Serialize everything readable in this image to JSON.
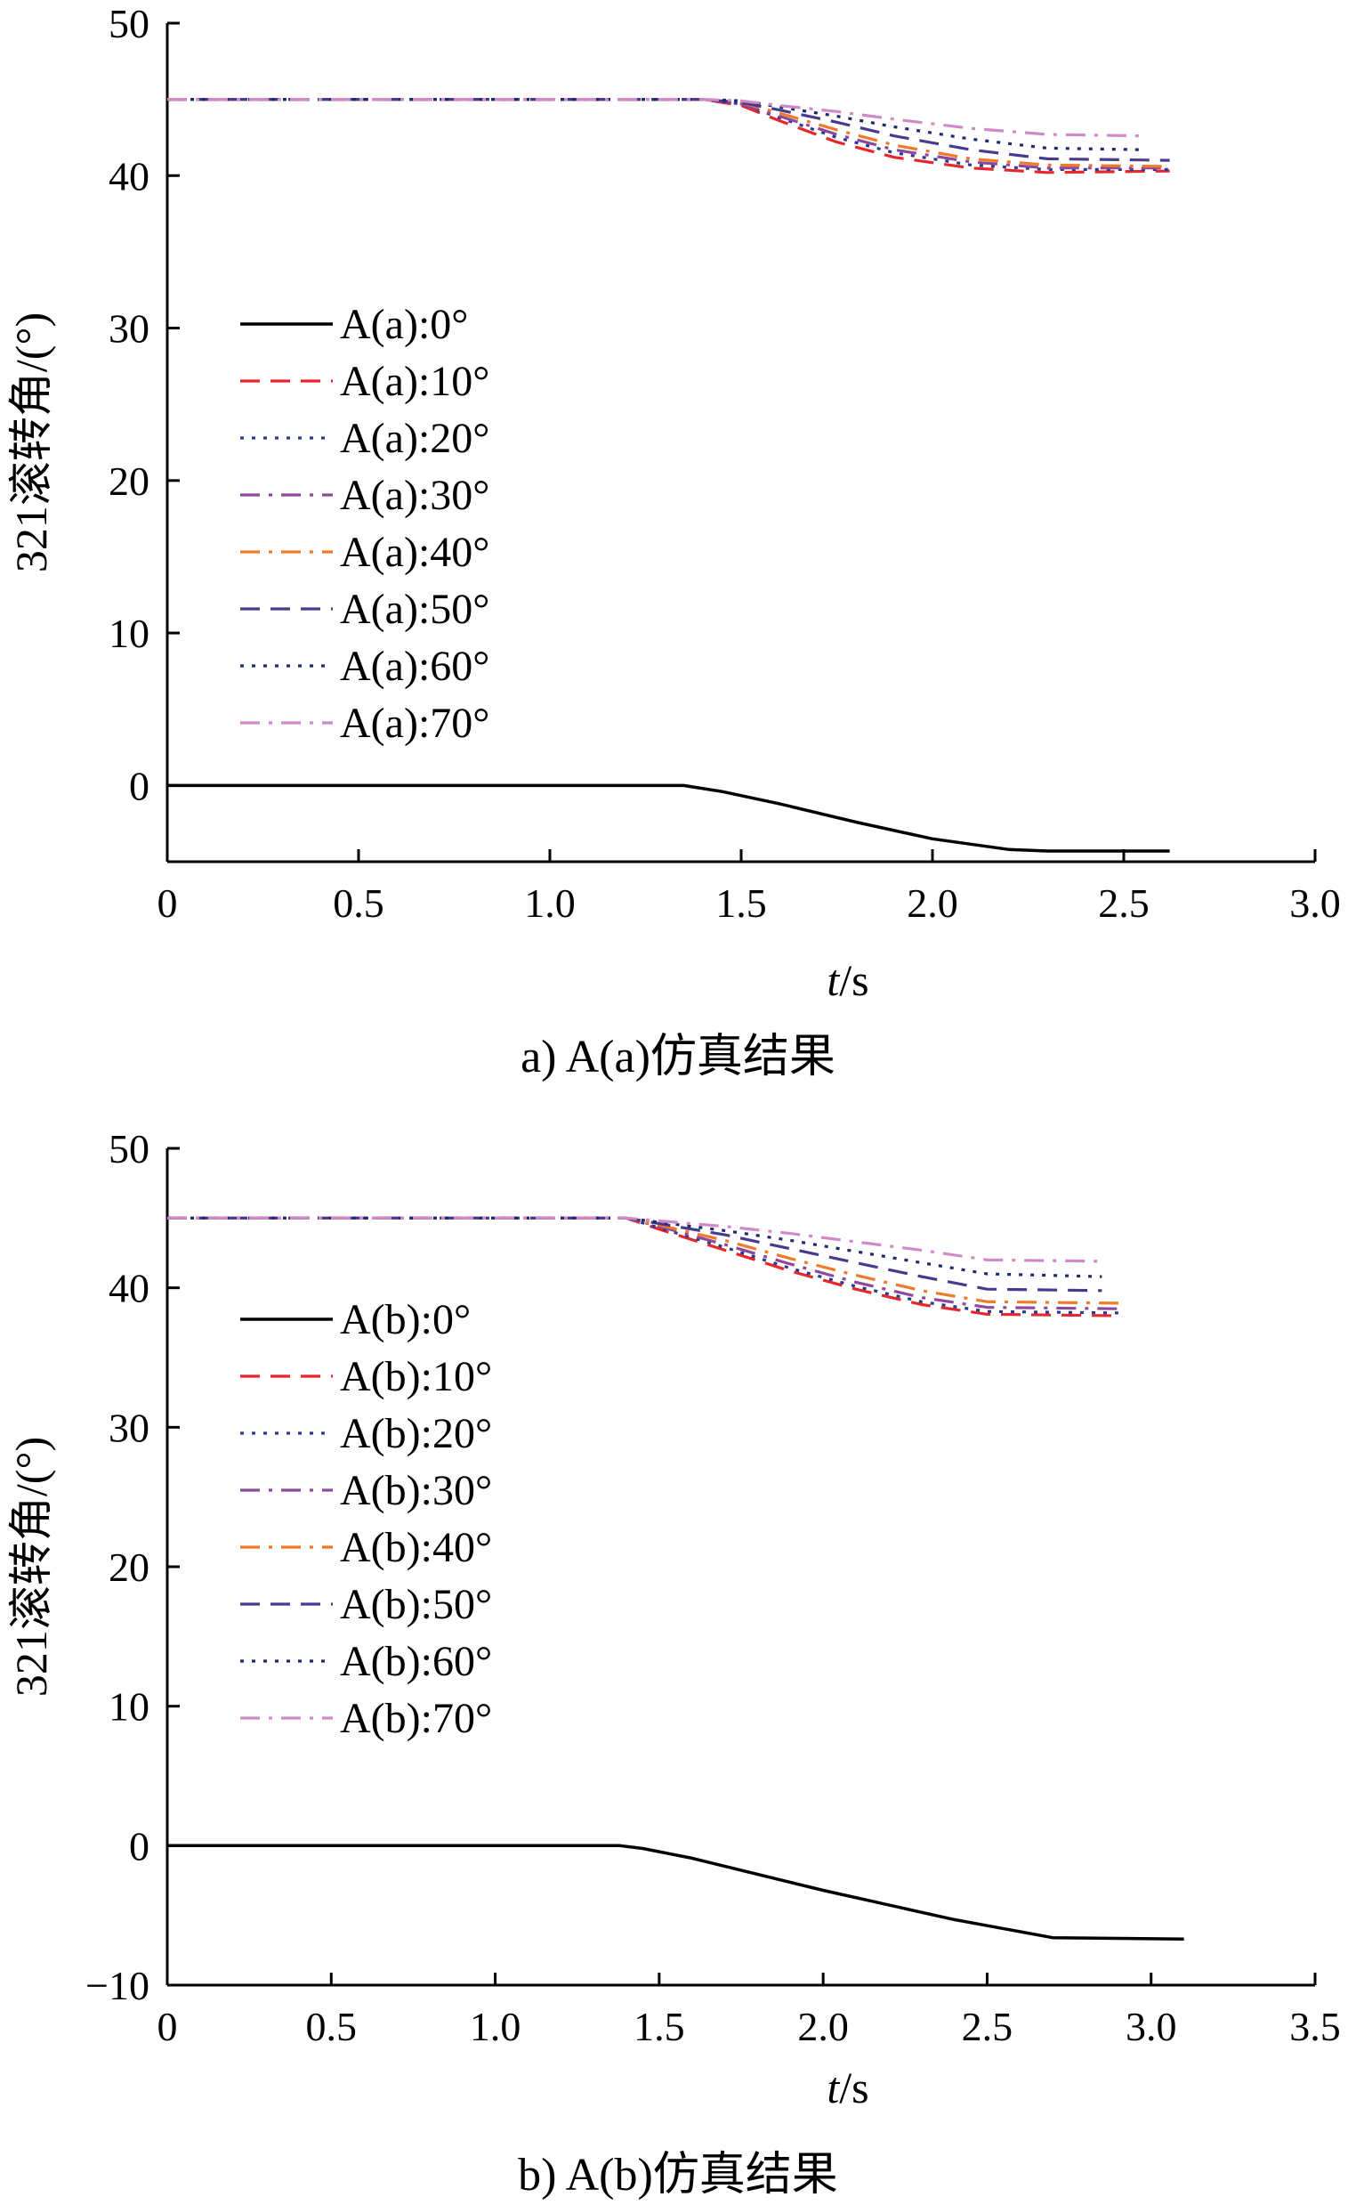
{
  "chart_data": [
    {
      "type": "line",
      "caption": "a) A(a)仿真结果",
      "xlabel_italic": "t",
      "xlabel_unit": "/s",
      "ylabel": "321滚转角/(°)",
      "xlim": [
        0,
        3.0
      ],
      "ylim": [
        -5,
        50
      ],
      "xticks": [
        0,
        0.5,
        1.0,
        1.5,
        2.0,
        2.5,
        3.0
      ],
      "xtick_labels": [
        "0",
        "0.5",
        "1.0",
        "1.5",
        "2.0",
        "2.5",
        "3.0"
      ],
      "yticks": [
        0,
        10,
        20,
        30,
        40,
        50
      ],
      "ytick_labels": [
        "0",
        "10",
        "20",
        "30",
        "40",
        "50"
      ],
      "legend_position": "left-middle",
      "series": [
        {
          "name": "A(a):0°",
          "color": "#000000",
          "dash": "solid",
          "x": [
            0,
            1.35,
            1.45,
            1.6,
            1.8,
            2.0,
            2.2,
            2.3,
            2.62
          ],
          "y": [
            0,
            0,
            -0.4,
            -1.2,
            -2.4,
            -3.5,
            -4.2,
            -4.3,
            -4.3
          ]
        },
        {
          "name": "A(a):10°",
          "color": "#e8262b",
          "dash": "dashed",
          "x": [
            0,
            1.4,
            1.5,
            1.6,
            1.75,
            1.9,
            2.1,
            2.3,
            2.62
          ],
          "y": [
            45,
            45,
            44.6,
            43.6,
            42.2,
            41.2,
            40.5,
            40.2,
            40.3
          ]
        },
        {
          "name": "A(a):20°",
          "color": "#2a3a8f",
          "dash": "dotted",
          "x": [
            0,
            1.4,
            1.5,
            1.6,
            1.75,
            1.9,
            2.1,
            2.3,
            2.62
          ],
          "y": [
            45,
            45,
            44.7,
            43.8,
            42.5,
            41.5,
            40.7,
            40.4,
            40.4
          ]
        },
        {
          "name": "A(a):30°",
          "color": "#8b4a9e",
          "dash": "dashdot",
          "x": [
            0,
            1.4,
            1.5,
            1.6,
            1.75,
            1.9,
            2.1,
            2.3,
            2.62
          ],
          "y": [
            45,
            45,
            44.7,
            43.9,
            42.7,
            41.7,
            40.9,
            40.5,
            40.5
          ]
        },
        {
          "name": "A(a):40°",
          "color": "#ef7a2a",
          "dash": "dashdot",
          "x": [
            0,
            1.4,
            1.5,
            1.6,
            1.75,
            1.9,
            2.1,
            2.3,
            2.62
          ],
          "y": [
            45,
            45,
            44.8,
            44.1,
            43.0,
            42.0,
            41.1,
            40.7,
            40.6
          ]
        },
        {
          "name": "A(a):50°",
          "color": "#4a3a8f",
          "dash": "dashed",
          "x": [
            0,
            1.4,
            1.5,
            1.6,
            1.75,
            1.9,
            2.1,
            2.3,
            2.62
          ],
          "y": [
            45,
            45,
            44.8,
            44.3,
            43.5,
            42.6,
            41.7,
            41.1,
            41.0
          ]
        },
        {
          "name": "A(a):60°",
          "color": "#1f2a6e",
          "dash": "dotted",
          "x": [
            0,
            1.4,
            1.5,
            1.6,
            1.75,
            1.9,
            2.1,
            2.3,
            2.55
          ],
          "y": [
            45,
            45,
            44.9,
            44.5,
            43.9,
            43.2,
            42.4,
            41.8,
            41.7
          ]
        },
        {
          "name": "A(a):70°",
          "color": "#d08ac8",
          "dash": "dashdot",
          "x": [
            0,
            1.4,
            1.5,
            1.6,
            1.75,
            1.9,
            2.1,
            2.3,
            2.55
          ],
          "y": [
            45,
            45,
            44.9,
            44.6,
            44.2,
            43.7,
            43.1,
            42.7,
            42.6
          ]
        }
      ]
    },
    {
      "type": "line",
      "caption": "b) A(b)仿真结果",
      "xlabel_italic": "t",
      "xlabel_unit": "/s",
      "ylabel": "321滚转角/(°)",
      "xlim": [
        0,
        3.5
      ],
      "ylim": [
        -10,
        50
      ],
      "xticks": [
        0,
        0.5,
        1.0,
        1.5,
        2.0,
        2.5,
        3.0,
        3.5
      ],
      "xtick_labels": [
        "0",
        "0.5",
        "1.0",
        "1.5",
        "2.0",
        "2.5",
        "3.0",
        "3.5"
      ],
      "yticks": [
        -10,
        0,
        10,
        20,
        30,
        40,
        50
      ],
      "ytick_labels": [
        "−10",
        "0",
        "10",
        "20",
        "30",
        "40",
        "50"
      ],
      "legend_position": "left-middle",
      "series": [
        {
          "name": "A(b):0°",
          "color": "#000000",
          "dash": "solid",
          "x": [
            0,
            1.38,
            1.45,
            1.6,
            2.0,
            2.4,
            2.7,
            3.1
          ],
          "y": [
            0,
            0,
            -0.2,
            -0.9,
            -3.2,
            -5.3,
            -6.6,
            -6.7
          ]
        },
        {
          "name": "A(b):10°",
          "color": "#e8262b",
          "dash": "dashed",
          "x": [
            0,
            1.4,
            1.5,
            1.7,
            1.9,
            2.1,
            2.3,
            2.5,
            2.9
          ],
          "y": [
            45,
            45,
            44.2,
            42.7,
            41.2,
            39.9,
            38.8,
            38.1,
            38.0
          ]
        },
        {
          "name": "A(b):20°",
          "color": "#2a3a8f",
          "dash": "dotted",
          "x": [
            0,
            1.4,
            1.5,
            1.7,
            1.9,
            2.1,
            2.3,
            2.5,
            2.9
          ],
          "y": [
            45,
            45,
            44.3,
            42.9,
            41.4,
            40.1,
            39.0,
            38.3,
            38.2
          ]
        },
        {
          "name": "A(b):30°",
          "color": "#8b4a9e",
          "dash": "dashdot",
          "x": [
            0,
            1.4,
            1.5,
            1.7,
            1.9,
            2.1,
            2.3,
            2.5,
            2.9
          ],
          "y": [
            45,
            45,
            44.4,
            43.1,
            41.7,
            40.4,
            39.3,
            38.6,
            38.5
          ]
        },
        {
          "name": "A(b):40°",
          "color": "#ef7a2a",
          "dash": "dashdot",
          "x": [
            0,
            1.4,
            1.5,
            1.7,
            1.9,
            2.1,
            2.3,
            2.5,
            2.9
          ],
          "y": [
            45,
            45,
            44.5,
            43.4,
            42.1,
            40.9,
            39.8,
            39.0,
            38.9
          ]
        },
        {
          "name": "A(b):50°",
          "color": "#4a3a8f",
          "dash": "dashed",
          "x": [
            0,
            1.4,
            1.5,
            1.7,
            1.9,
            2.1,
            2.3,
            2.5,
            2.85
          ],
          "y": [
            45,
            45,
            44.6,
            43.8,
            42.8,
            41.8,
            40.8,
            39.9,
            39.8
          ]
        },
        {
          "name": "A(b):60°",
          "color": "#1f2a6e",
          "dash": "dotted",
          "x": [
            0,
            1.4,
            1.5,
            1.7,
            1.9,
            2.1,
            2.3,
            2.5,
            2.85
          ],
          "y": [
            45,
            45,
            44.7,
            44.1,
            43.4,
            42.6,
            41.8,
            41.0,
            40.8
          ]
        },
        {
          "name": "A(b):70°",
          "color": "#d08ac8",
          "dash": "dashdot",
          "x": [
            0,
            1.4,
            1.5,
            1.7,
            1.9,
            2.1,
            2.3,
            2.5,
            2.85
          ],
          "y": [
            45,
            45,
            44.8,
            44.4,
            43.9,
            43.3,
            42.7,
            42.0,
            41.9
          ]
        }
      ]
    }
  ]
}
